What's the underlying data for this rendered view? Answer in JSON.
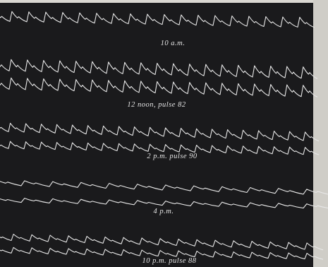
{
  "labels": [
    "10 a.m.",
    "12 noon, pulse 82",
    "2 p.m. pulse 90",
    "4 p.m.",
    "10 p.m. pulse 88"
  ]
}
